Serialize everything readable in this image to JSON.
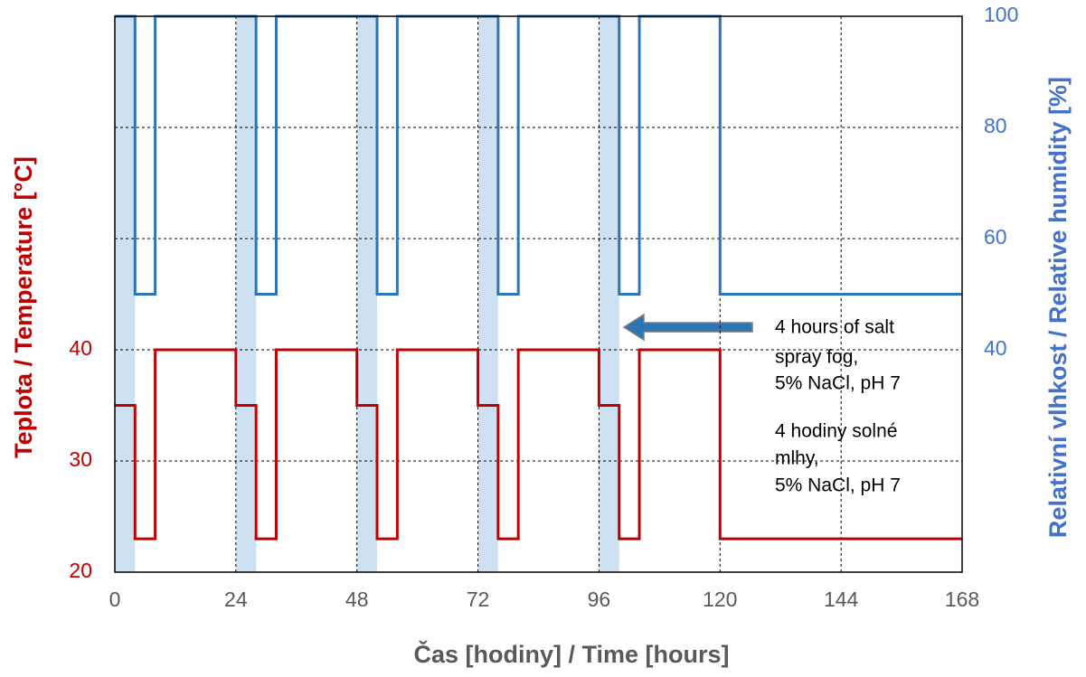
{
  "chart_data": {
    "type": "line",
    "x_label": "Čas [hodiny] / Time [hours]",
    "y_label": "Teplota / Temperature [°C]",
    "y2_label": "Relativní vlhkost / Relative humidity [%]",
    "x": [
      0,
      4,
      4,
      8,
      8,
      24,
      24,
      28,
      28,
      32,
      32,
      48,
      48,
      52,
      52,
      56,
      56,
      72,
      72,
      76,
      76,
      80,
      80,
      96,
      96,
      100,
      100,
      104,
      104,
      120,
      120,
      168
    ],
    "series": [
      {
        "name": "Teplota / Temperature",
        "color": "#c00000",
        "values": [
          35,
          35,
          23,
          23,
          40,
          40,
          35,
          35,
          23,
          23,
          40,
          40,
          35,
          35,
          23,
          23,
          40,
          40,
          35,
          35,
          23,
          23,
          40,
          40,
          35,
          35,
          23,
          23,
          40,
          40,
          23,
          23
        ]
      },
      {
        "name": "Relativní vlhkost / Relative humidity",
        "color": "#2e75b6",
        "axis": "y2",
        "values": [
          100,
          100,
          50,
          50,
          100,
          100,
          100,
          100,
          50,
          50,
          100,
          100,
          100,
          100,
          50,
          50,
          100,
          100,
          100,
          100,
          50,
          50,
          100,
          100,
          100,
          100,
          50,
          50,
          100,
          100,
          50,
          50
        ]
      }
    ],
    "shaded_intervals": [
      [
        0,
        4
      ],
      [
        24,
        28
      ],
      [
        48,
        52
      ],
      [
        72,
        76
      ],
      [
        96,
        100
      ]
    ],
    "shade_color": "#bdd7ee",
    "xlim": [
      0,
      168
    ],
    "xticks": [
      0,
      24,
      48,
      72,
      96,
      120,
      144,
      168
    ],
    "ylim": [
      20,
      70
    ],
    "yticks": [
      20,
      30,
      40
    ],
    "y2lim": [
      0,
      100
    ],
    "y2ticks": [
      40,
      60,
      80,
      100
    ],
    "grid": true,
    "annotation": [
      "4 hours of salt",
      "spray fog,",
      "5% NaCl, pH 7",
      "4 hodiny solné",
      "mlhy,",
      "5% NaCl, pH 7"
    ]
  }
}
